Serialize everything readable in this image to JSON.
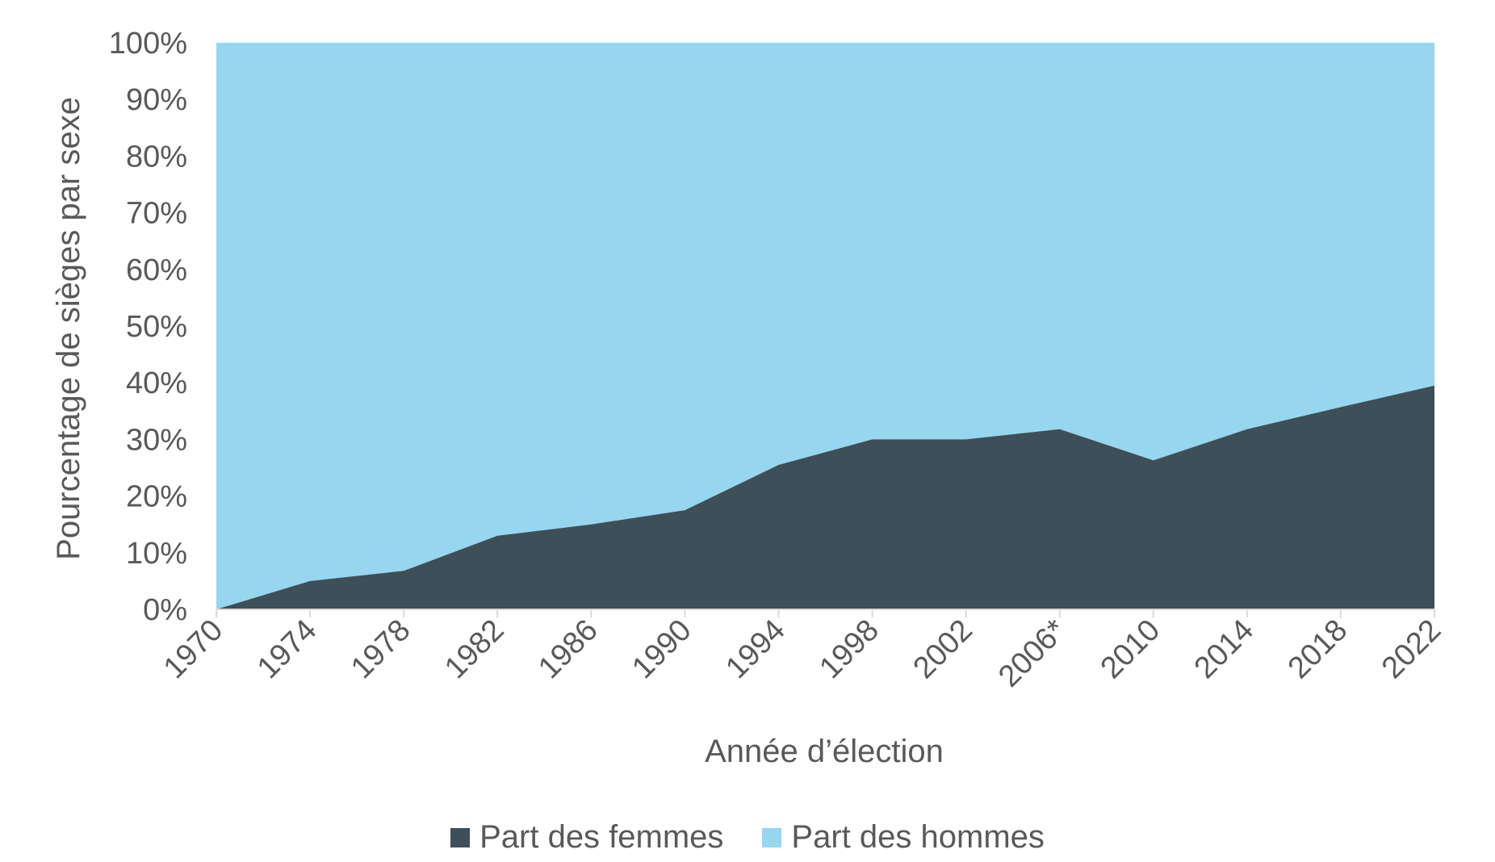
{
  "chart_data": {
    "type": "area",
    "stacked": true,
    "normalized": true,
    "categories": [
      "1970",
      "1974",
      "1978",
      "1982",
      "1986",
      "1990",
      "1994",
      "1998",
      "2002",
      "2006*",
      "2010",
      "2014",
      "2018",
      "2022"
    ],
    "series": [
      {
        "name": "Part des femmes",
        "color": "#3d4f58",
        "values": [
          0,
          5,
          6.8,
          13,
          15,
          17.5,
          25.5,
          30,
          30,
          31.8,
          26.3,
          31.8,
          35.7,
          39.5
        ]
      },
      {
        "name": "Part des hommes",
        "color": "#97d6ef",
        "values": [
          100,
          95,
          93.2,
          87,
          85,
          82.5,
          74.5,
          70,
          70,
          68.2,
          73.7,
          68.2,
          64.3,
          60.5
        ]
      }
    ],
    "xlabel": "Année d’élection",
    "ylabel": "Pourcentage de sièges par sexe",
    "ylim": [
      0,
      100
    ],
    "yticks": [
      "0%",
      "10%",
      "20%",
      "30%",
      "40%",
      "50%",
      "60%",
      "70%",
      "80%",
      "90%",
      "100%"
    ],
    "grid": false,
    "legend_position": "bottom"
  }
}
